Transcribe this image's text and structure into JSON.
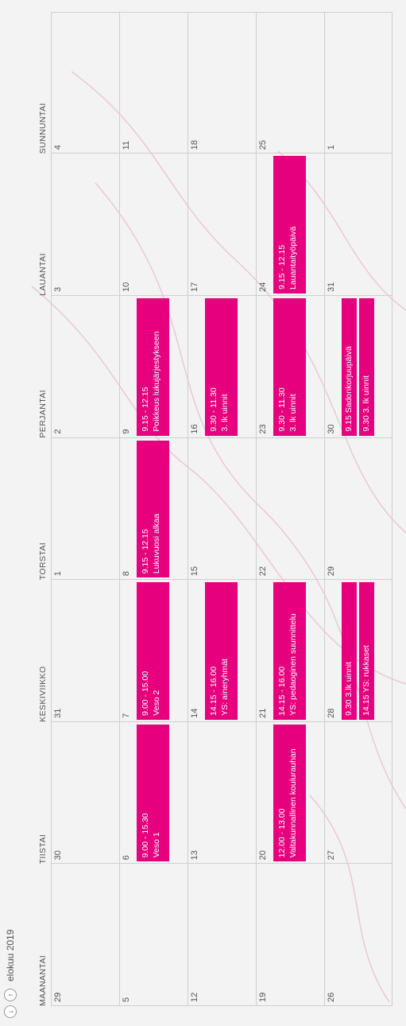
{
  "header": {
    "month_label": "elokuu 2019"
  },
  "nav": {
    "prev_symbol": "↓",
    "next_symbol": "↑"
  },
  "weekdays": [
    "MAANANTAI",
    "TIISTAI",
    "KESKIVIIKKO",
    "TORSTAI",
    "PERJANTAI",
    "LAUANTAI",
    "SUNNUNTAI"
  ],
  "weeks": [
    [
      "29",
      "30",
      "31",
      "1",
      "2",
      "3",
      "4"
    ],
    [
      "5",
      "6",
      "7",
      "8",
      "9",
      "10",
      "11"
    ],
    [
      "12",
      "13",
      "14",
      "15",
      "16",
      "17",
      "18"
    ],
    [
      "19",
      "20",
      "21",
      "22",
      "23",
      "24",
      "25"
    ],
    [
      "26",
      "27",
      "28",
      "29",
      "30",
      "31",
      "1"
    ]
  ],
  "events": [
    {
      "week": 1,
      "day": 1,
      "time": "9.00 - 15.30",
      "title": "Veso 1"
    },
    {
      "week": 1,
      "day": 2,
      "time": "9.00 - 15.00",
      "title": "Veso 2"
    },
    {
      "week": 1,
      "day": 3,
      "time": "9.15 - 12.15",
      "title": "Lukuvuosi alkaa"
    },
    {
      "week": 1,
      "day": 4,
      "time": "9.15 - 12.15",
      "title": "Poikkeus lukujärjestykseen"
    },
    {
      "week": 2,
      "day": 2,
      "time": "14.15 - 16.00",
      "title": "YS: aineryhmät"
    },
    {
      "week": 2,
      "day": 4,
      "time": "9.30 - 11.30",
      "title": "3. lk uinnit"
    },
    {
      "week": 3,
      "day": 1,
      "time": "12.00 - 13.00",
      "title": "Valtakunnallinen koulurauhan"
    },
    {
      "week": 3,
      "day": 2,
      "time": "14.15 - 16.00",
      "title": "YS: pedaoginen suunnittelu"
    },
    {
      "week": 3,
      "day": 4,
      "time": "9.30 - 11.30",
      "title": "3. lk uinnit"
    },
    {
      "week": 3,
      "day": 5,
      "time": "9.15 - 12.15",
      "title": "Lauantaityöpäivä"
    },
    {
      "week": 4,
      "day": 2,
      "text": "9.30 3.lk uinnit"
    },
    {
      "week": 4,
      "day": 2,
      "text": "14.15 YS: rukkaset"
    },
    {
      "week": 4,
      "day": 4,
      "text": "9.15 Sadonkorjuupäivä"
    },
    {
      "week": 4,
      "day": 4,
      "text": "9.30 3. lk uinnit"
    }
  ],
  "colors": {
    "event": "#e6007e",
    "grid_line": "#cfcfcf",
    "background": "#f3f3f3"
  }
}
